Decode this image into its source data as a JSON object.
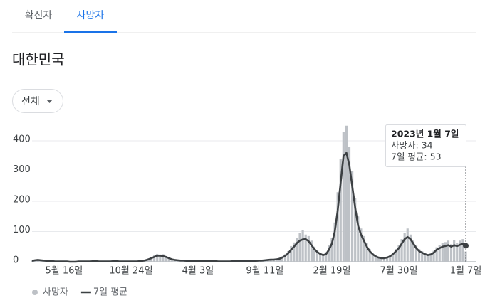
{
  "tabs": [
    "확진자",
    "사망자"
  ],
  "active_tab": 1,
  "filter": "전체",
  "chart_data": {
    "type": "bar",
    "title": "대한민국",
    "categories": [
      null,
      null,
      null,
      null,
      null,
      null,
      null,
      null,
      null,
      null,
      null,
      "5월 16일",
      null,
      null,
      null,
      null,
      null,
      null,
      null,
      null,
      null,
      null,
      null,
      null,
      null,
      null,
      null,
      null,
      null,
      null,
      null,
      null,
      null,
      null,
      "10월 24일",
      null,
      null,
      null,
      null,
      null,
      null,
      null,
      null,
      null,
      null,
      null,
      null,
      null,
      null,
      null,
      null,
      null,
      null,
      null,
      null,
      null,
      null,
      "4월 3일",
      null,
      null,
      null,
      null,
      null,
      null,
      null,
      null,
      null,
      null,
      null,
      null,
      null,
      null,
      null,
      null,
      null,
      null,
      null,
      null,
      null,
      null,
      "9월 11일",
      null,
      null,
      null,
      null,
      null,
      null,
      null,
      null,
      null,
      null,
      null,
      null,
      null,
      null,
      null,
      null,
      null,
      null,
      null,
      null,
      null,
      null,
      "2월 19일",
      null,
      null,
      null,
      null,
      null,
      null,
      null,
      null,
      null,
      null,
      null,
      null,
      null,
      null,
      null,
      null,
      null,
      null,
      null,
      null,
      null,
      null,
      "7월 30일",
      null,
      null,
      null,
      null,
      null,
      null,
      null,
      null,
      null,
      null,
      null,
      null,
      null,
      null,
      null,
      null,
      null,
      null,
      null,
      null,
      null,
      null,
      "1월 7일"
    ],
    "series": [
      {
        "name": "사망자",
        "type": "bar",
        "color": "#bdc1c6",
        "values": [
          4,
          7,
          8,
          6,
          5,
          4,
          2,
          3,
          1,
          2,
          1,
          2,
          1,
          0,
          1,
          0,
          1,
          2,
          1,
          0,
          1,
          3,
          2,
          1,
          2,
          1,
          0,
          1,
          3,
          2,
          1,
          2,
          1,
          0,
          1,
          2,
          1,
          3,
          4,
          7,
          11,
          15,
          22,
          26,
          24,
          25,
          19,
          14,
          10,
          7,
          6,
          5,
          6,
          3,
          4,
          2,
          3,
          2,
          3,
          1,
          2,
          3,
          2,
          3,
          1,
          2,
          1,
          0,
          2,
          3,
          2,
          4,
          3,
          4,
          2,
          3,
          4,
          3,
          5,
          4,
          6,
          8,
          9,
          8,
          10,
          13,
          18,
          25,
          35,
          52,
          64,
          80,
          95,
          105,
          90,
          85,
          70,
          50,
          38,
          30,
          26,
          32,
          55,
          80,
          130,
          230,
          340,
          430,
          450,
          380,
          300,
          210,
          150,
          110,
          85,
          62,
          42,
          30,
          22,
          17,
          14,
          15,
          17,
          22,
          30,
          42,
          55,
          75,
          95,
          110,
          90,
          70,
          55,
          42,
          35,
          30,
          26,
          28,
          36,
          48,
          55,
          62,
          65,
          70,
          58,
          72,
          62,
          70,
          75,
          34
        ]
      },
      {
        "name": "7일 평균",
        "type": "line",
        "color": "#3c4043",
        "values": [
          3,
          5,
          6,
          5,
          4,
          3,
          2,
          2,
          1,
          1,
          1,
          1,
          1,
          0,
          0,
          0,
          1,
          1,
          1,
          1,
          1,
          2,
          2,
          1,
          1,
          1,
          1,
          1,
          2,
          2,
          1,
          1,
          1,
          1,
          1,
          1,
          1,
          2,
          3,
          5,
          8,
          12,
          16,
          20,
          20,
          19,
          16,
          12,
          8,
          6,
          5,
          4,
          4,
          3,
          3,
          3,
          2,
          2,
          2,
          2,
          2,
          2,
          2,
          2,
          1,
          1,
          1,
          1,
          1,
          2,
          2,
          3,
          3,
          3,
          2,
          2,
          3,
          3,
          4,
          4,
          5,
          6,
          7,
          7,
          8,
          10,
          14,
          20,
          28,
          40,
          50,
          62,
          70,
          74,
          75,
          68,
          55,
          42,
          32,
          26,
          22,
          25,
          40,
          60,
          100,
          170,
          260,
          350,
          360,
          320,
          250,
          180,
          120,
          90,
          70,
          50,
          35,
          25,
          18,
          14,
          12,
          12,
          14,
          18,
          25,
          35,
          45,
          60,
          75,
          82,
          75,
          60,
          45,
          35,
          30,
          25,
          22,
          24,
          30,
          40,
          45,
          50,
          52,
          55,
          50,
          55,
          52,
          56,
          60,
          53
        ]
      }
    ],
    "ylim": [
      0,
      450
    ],
    "yticks": [
      0,
      100,
      200,
      300,
      400
    ],
    "grid": true,
    "tooltip": {
      "title": "2023년 1월 7일",
      "lines": [
        "사망자: 34",
        "7일 평균: 53"
      ]
    }
  }
}
